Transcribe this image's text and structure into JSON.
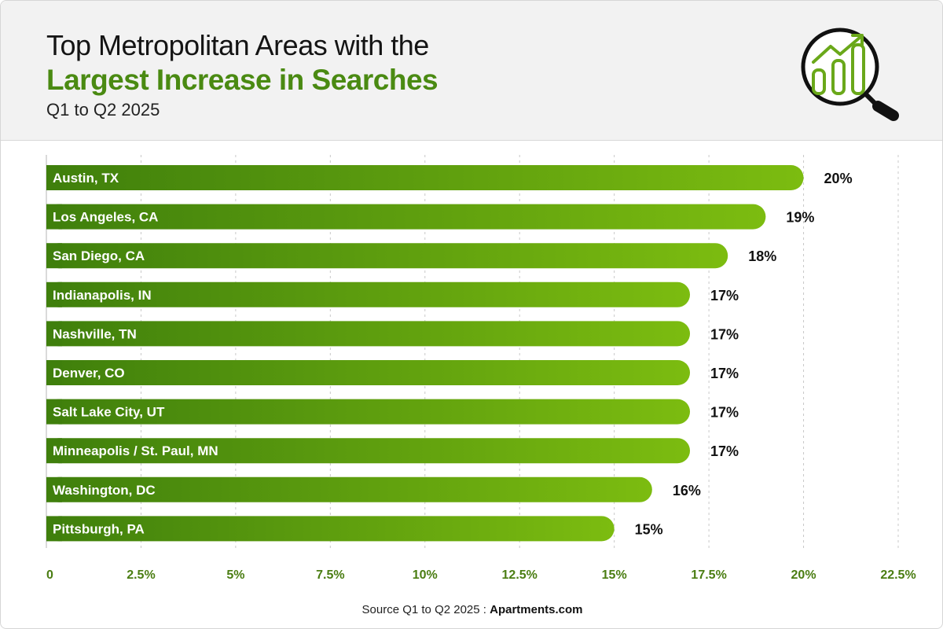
{
  "header": {
    "title_line1": "Top Metropolitan Areas with the",
    "title_line2": "Largest Increase in Searches",
    "subtitle": "Q1 to Q2 2025"
  },
  "colors": {
    "accent": "#4a8a12",
    "bar_start": "#3f7f0c",
    "bar_end": "#7cbc10",
    "tick_label": "#4a7d12"
  },
  "icon": "magnifier-growth-chart-icon",
  "source": {
    "prefix": "Source Q1 to Q2 2025 : ",
    "brand": "Apartments.com"
  },
  "chart_data": {
    "type": "bar",
    "orientation": "horizontal",
    "categories": [
      "Austin, TX",
      "Los Angeles, CA",
      "San Diego, CA",
      "Indianapolis, IN",
      "Nashville, TN",
      "Denver, CO",
      "Salt Lake City, UT",
      "Minneapolis / St. Paul, MN",
      "Washington, DC",
      "Pittsburgh, PA"
    ],
    "values": [
      20,
      19,
      18,
      17,
      17,
      17,
      17,
      17,
      16,
      15
    ],
    "value_labels": [
      "20%",
      "19%",
      "18%",
      "17%",
      "17%",
      "17%",
      "17%",
      "17%",
      "16%",
      "15%"
    ],
    "xlim": [
      0,
      22.5
    ],
    "xticks": [
      0,
      2.5,
      5,
      7.5,
      10,
      12.5,
      15,
      17.5,
      20,
      22.5
    ],
    "xtick_labels": [
      "0",
      "2.5%",
      "5%",
      "7.5%",
      "10%",
      "12.5%",
      "15%",
      "17.5%",
      "20%",
      "22.5%"
    ],
    "grid": "vertical dashed",
    "legend": "none"
  }
}
